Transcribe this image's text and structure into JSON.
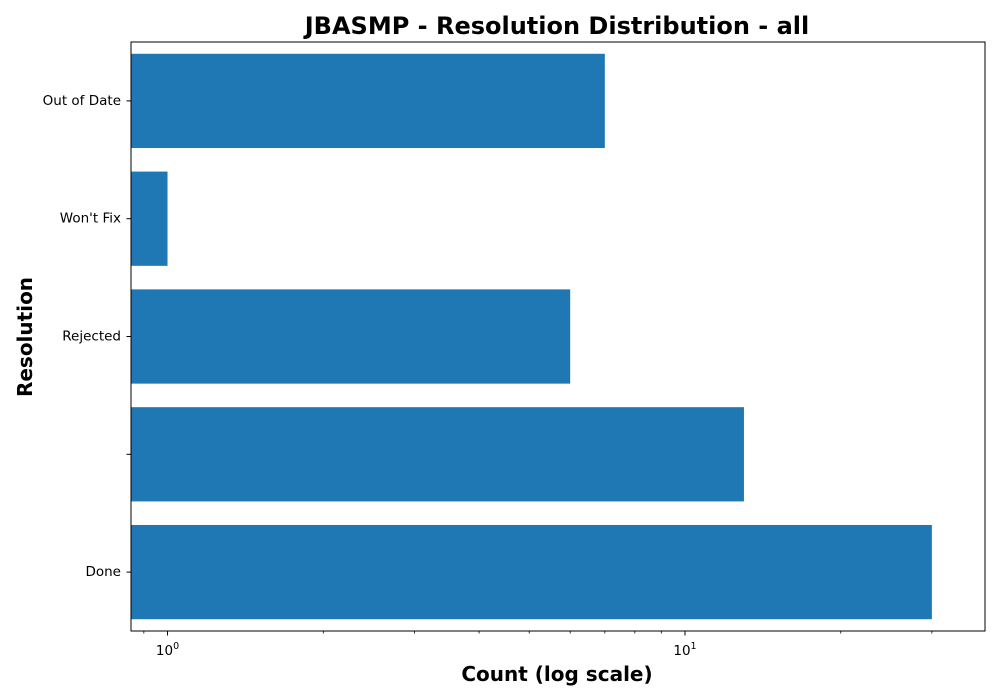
{
  "chart_data": {
    "type": "bar",
    "orientation": "horizontal",
    "title": "JBASMP - Resolution Distribution - all",
    "xlabel": "Count (log scale)",
    "ylabel": "Resolution",
    "x_scale": "log",
    "xlim": [
      0.85,
      38
    ],
    "x_ticks": [
      {
        "base": "10",
        "exp": "0",
        "value": 1
      },
      {
        "base": "10",
        "exp": "1",
        "value": 10
      }
    ],
    "categories": [
      "Done",
      "",
      "Rejected",
      "Won't Fix",
      "Out of Date"
    ],
    "values": [
      30,
      13,
      6,
      1,
      7
    ],
    "bar_color": "#1f77b4",
    "grid": false,
    "legend": "none"
  }
}
